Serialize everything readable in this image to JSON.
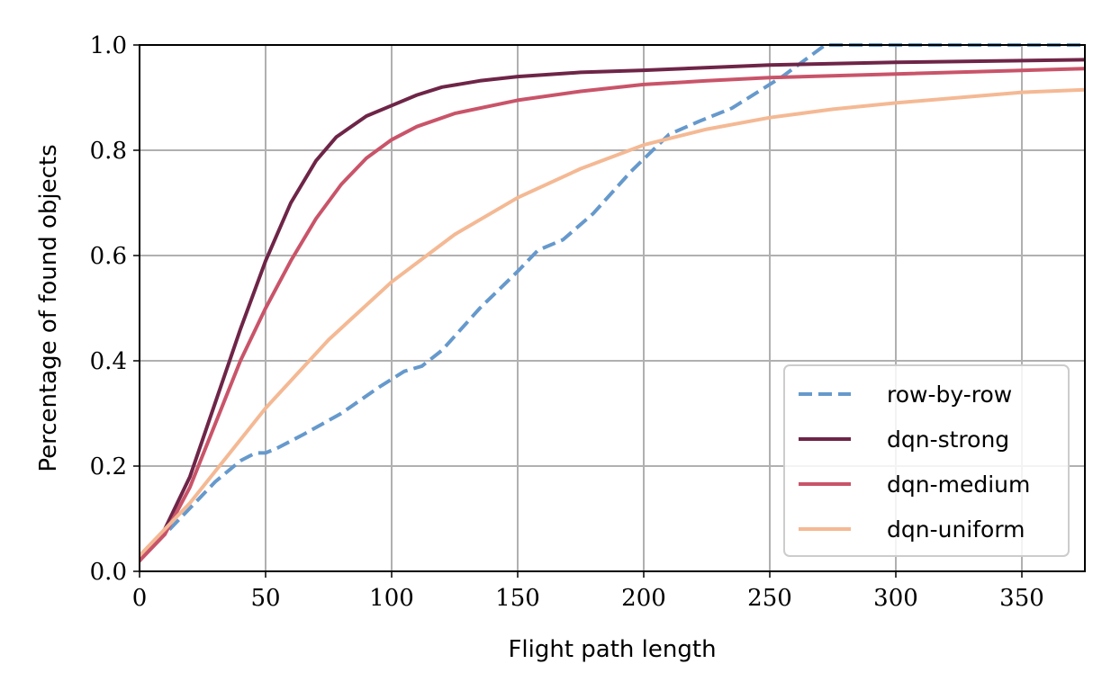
{
  "chart_data": {
    "type": "line",
    "title": "",
    "xlabel": "Flight path length",
    "ylabel": "Percentage of found objects",
    "xlim": [
      0,
      375
    ],
    "ylim": [
      0.0,
      1.0
    ],
    "xticks": [
      0,
      50,
      100,
      150,
      200,
      250,
      300,
      350
    ],
    "yticks": [
      0.0,
      0.2,
      0.4,
      0.6,
      0.8,
      1.0
    ],
    "xtick_labels": [
      "0",
      "50",
      "100",
      "150",
      "200",
      "250",
      "300",
      "350"
    ],
    "ytick_labels": [
      "0.0",
      "0.2",
      "0.4",
      "0.6",
      "0.8",
      "1.0"
    ],
    "grid": true,
    "legend_position": "lower-right",
    "series": [
      {
        "name": "row-by-row",
        "color": "#6699cc",
        "dashed": true,
        "x": [
          0,
          10,
          20,
          30,
          40,
          46,
          50,
          55,
          65,
          80,
          95,
          105,
          112,
          120,
          135,
          150,
          158,
          168,
          180,
          195,
          210,
          222,
          235,
          255,
          272,
          375
        ],
        "y": [
          0.03,
          0.07,
          0.12,
          0.17,
          0.21,
          0.225,
          0.225,
          0.235,
          0.26,
          0.3,
          0.35,
          0.38,
          0.39,
          0.42,
          0.5,
          0.57,
          0.61,
          0.63,
          0.68,
          0.76,
          0.83,
          0.855,
          0.88,
          0.94,
          1.0,
          1.0
        ]
      },
      {
        "name": "dqn-strong",
        "color": "#6e2547",
        "dashed": false,
        "x": [
          0,
          10,
          20,
          30,
          40,
          50,
          60,
          70,
          78,
          90,
          100,
          110,
          120,
          135,
          150,
          175,
          200,
          250,
          300,
          375
        ],
        "y": [
          0.02,
          0.08,
          0.18,
          0.32,
          0.46,
          0.59,
          0.7,
          0.78,
          0.825,
          0.865,
          0.885,
          0.905,
          0.92,
          0.932,
          0.94,
          0.948,
          0.952,
          0.962,
          0.967,
          0.972
        ]
      },
      {
        "name": "dqn-medium",
        "color": "#c95469",
        "dashed": false,
        "x": [
          0,
          10,
          20,
          30,
          40,
          50,
          60,
          70,
          80,
          90,
          100,
          110,
          125,
          150,
          175,
          200,
          225,
          250,
          300,
          375
        ],
        "y": [
          0.02,
          0.07,
          0.16,
          0.28,
          0.4,
          0.5,
          0.59,
          0.67,
          0.735,
          0.785,
          0.82,
          0.845,
          0.87,
          0.895,
          0.912,
          0.925,
          0.932,
          0.938,
          0.945,
          0.955
        ]
      },
      {
        "name": "dqn-uniform",
        "color": "#f4b994",
        "dashed": false,
        "x": [
          0,
          10,
          20,
          30,
          50,
          75,
          100,
          125,
          150,
          175,
          200,
          225,
          250,
          275,
          300,
          325,
          350,
          375
        ],
        "y": [
          0.03,
          0.08,
          0.13,
          0.19,
          0.31,
          0.44,
          0.55,
          0.64,
          0.71,
          0.765,
          0.81,
          0.84,
          0.862,
          0.878,
          0.89,
          0.9,
          0.91,
          0.915
        ]
      }
    ]
  }
}
